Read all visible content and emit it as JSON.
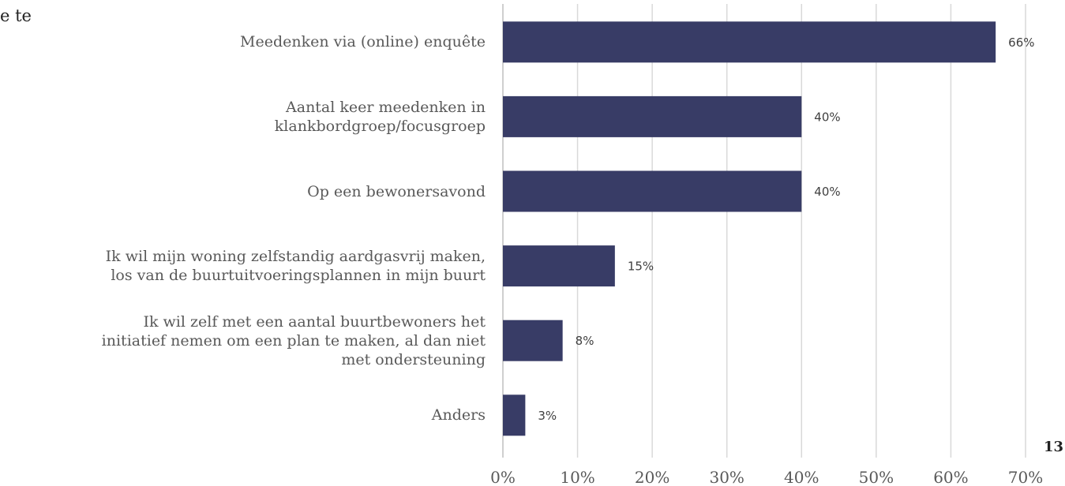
{
  "fragment": "e te",
  "page_number": "13",
  "chart_data": {
    "type": "bar",
    "orientation": "horizontal",
    "categories": [
      "Meedenken via (online) enquête",
      "Aantal keer meedenken in\nklankbordgroep/focusgroep",
      "Op een bewonersavond",
      "Ik wil mijn woning zelfstandig aardgasvrij maken,\nlos van de buurtuitvoeringsplannen in mijn buurt",
      "Ik wil zelf met een aantal buurtbewoners het\ninitiatief nemen om een plan te maken, al dan niet\nmet ondersteuning",
      "Anders"
    ],
    "values": [
      66,
      40,
      40,
      15,
      8,
      3
    ],
    "value_labels": [
      "66%",
      "40%",
      "40%",
      "15%",
      "8%",
      "3%"
    ],
    "color": "#383c66",
    "xlim": [
      0,
      70
    ],
    "xticks": [
      {
        "value": 0,
        "label": "0%"
      },
      {
        "value": 10,
        "label": "10%"
      },
      {
        "value": 20,
        "label": "20%"
      },
      {
        "value": 30,
        "label": "30%"
      },
      {
        "value": 40,
        "label": "40%"
      },
      {
        "value": 50,
        "label": "50%"
      },
      {
        "value": 60,
        "label": "60%"
      },
      {
        "value": 70,
        "label": "70%"
      }
    ],
    "grid": true
  }
}
